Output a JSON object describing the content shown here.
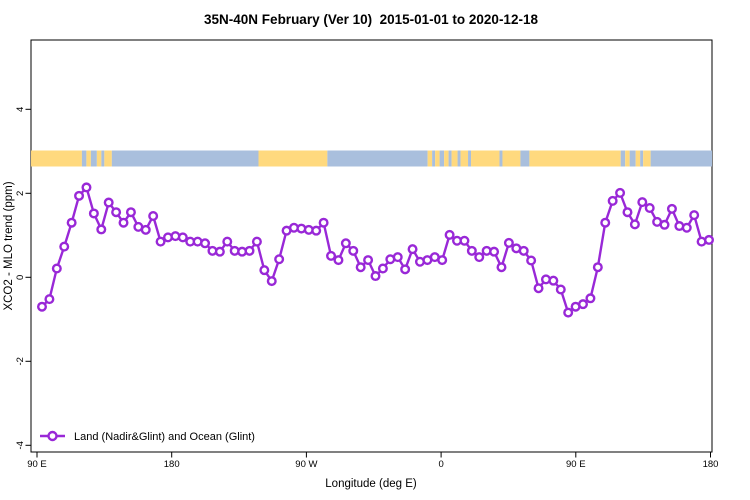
{
  "chart_data": {
    "type": "line",
    "title": "35N-40N February (Ver 10)  2015-01-01 to 2020-12-18",
    "xlabel": "Longitude (deg E)",
    "ylabel": "XCO2 - MLO trend (ppm)",
    "x_axis": {
      "wraps": true,
      "ticks": [
        {
          "deg": 0,
          "label": "90 E"
        },
        {
          "deg": 90,
          "label": "180"
        },
        {
          "deg": 180,
          "label": "90 W"
        },
        {
          "deg": 270,
          "label": "0"
        },
        {
          "deg": 360,
          "label": "90 E"
        },
        {
          "deg": 450,
          "label": "180"
        }
      ],
      "range_deg": [
        -4,
        451
      ]
    },
    "y_axis": {
      "ticks": [
        4,
        2,
        0,
        -2,
        -4
      ],
      "range": [
        -4.2,
        5.6
      ],
      "label_rotation": -90
    },
    "grid": false,
    "legend": {
      "label": "Land (Nadir&Glint) and Ocean (Glint)",
      "position": "bottom-left"
    },
    "series": [
      {
        "name": "Land (Nadir&Glint) and Ocean (Glint)",
        "color": "#9928D7",
        "marker": "open-circle",
        "x_start_deg": 3.3,
        "x_step_deg": 4.95,
        "values": [
          -0.7,
          -0.52,
          0.21,
          0.73,
          1.3,
          1.94,
          2.14,
          1.52,
          1.14,
          1.78,
          1.55,
          1.3,
          1.55,
          1.2,
          1.13,
          1.46,
          0.85,
          0.95,
          0.98,
          0.95,
          0.85,
          0.85,
          0.81,
          0.63,
          0.61,
          0.85,
          0.63,
          0.61,
          0.63,
          0.85,
          0.17,
          -0.09,
          0.43,
          1.11,
          1.18,
          1.16,
          1.13,
          1.11,
          1.3,
          0.51,
          0.41,
          0.81,
          0.63,
          0.24,
          0.41,
          0.03,
          0.21,
          0.43,
          0.48,
          0.19,
          0.67,
          0.37,
          0.41,
          0.48,
          0.41,
          1.01,
          0.87,
          0.87,
          0.63,
          0.48,
          0.63,
          0.61,
          0.24,
          0.82,
          0.69,
          0.63,
          0.4,
          -0.26,
          -0.05,
          -0.08,
          -0.29,
          -0.84,
          -0.7,
          -0.64,
          -0.5,
          0.24,
          1.3,
          1.82,
          2.01,
          1.55,
          1.26,
          1.79,
          1.65,
          1.32,
          1.25,
          1.63,
          1.22,
          1.18,
          1.48,
          0.85,
          0.89
        ]
      }
    ],
    "surface_strip": {
      "description": "land/ocean type along longitude, drawn as band near y=2.8 ppm",
      "land_color": "#FFD97E",
      "ocean_color": "#A9BFDD",
      "segments": [
        {
          "from": -4,
          "to": 30,
          "type": "land"
        },
        {
          "from": 30,
          "to": 33,
          "type": "ocean"
        },
        {
          "from": 33,
          "to": 36,
          "type": "land"
        },
        {
          "from": 36,
          "to": 40,
          "type": "ocean"
        },
        {
          "from": 40,
          "to": 43,
          "type": "land"
        },
        {
          "from": 43,
          "to": 45,
          "type": "ocean"
        },
        {
          "from": 45,
          "to": 50,
          "type": "land"
        },
        {
          "from": 50,
          "to": 148,
          "type": "ocean"
        },
        {
          "from": 148,
          "to": 194,
          "type": "land"
        },
        {
          "from": 194,
          "to": 261,
          "type": "ocean"
        },
        {
          "from": 261,
          "to": 264,
          "type": "land"
        },
        {
          "from": 264,
          "to": 266,
          "type": "ocean"
        },
        {
          "from": 266,
          "to": 269,
          "type": "land"
        },
        {
          "from": 269,
          "to": 272,
          "type": "ocean"
        },
        {
          "from": 272,
          "to": 275,
          "type": "land"
        },
        {
          "from": 275,
          "to": 277,
          "type": "ocean"
        },
        {
          "from": 277,
          "to": 281,
          "type": "land"
        },
        {
          "from": 281,
          "to": 283,
          "type": "ocean"
        },
        {
          "from": 283,
          "to": 288,
          "type": "land"
        },
        {
          "from": 288,
          "to": 290,
          "type": "ocean"
        },
        {
          "from": 290,
          "to": 309,
          "type": "land"
        },
        {
          "from": 309,
          "to": 311,
          "type": "ocean"
        },
        {
          "from": 311,
          "to": 323,
          "type": "land"
        },
        {
          "from": 323,
          "to": 329,
          "type": "ocean"
        },
        {
          "from": 329,
          "to": 390,
          "type": "land"
        },
        {
          "from": 390,
          "to": 393,
          "type": "ocean"
        },
        {
          "from": 393,
          "to": 396,
          "type": "land"
        },
        {
          "from": 396,
          "to": 400,
          "type": "ocean"
        },
        {
          "from": 400,
          "to": 403,
          "type": "land"
        },
        {
          "from": 403,
          "to": 405,
          "type": "ocean"
        },
        {
          "from": 405,
          "to": 410,
          "type": "land"
        },
        {
          "from": 410,
          "to": 451,
          "type": "ocean"
        }
      ]
    }
  }
}
